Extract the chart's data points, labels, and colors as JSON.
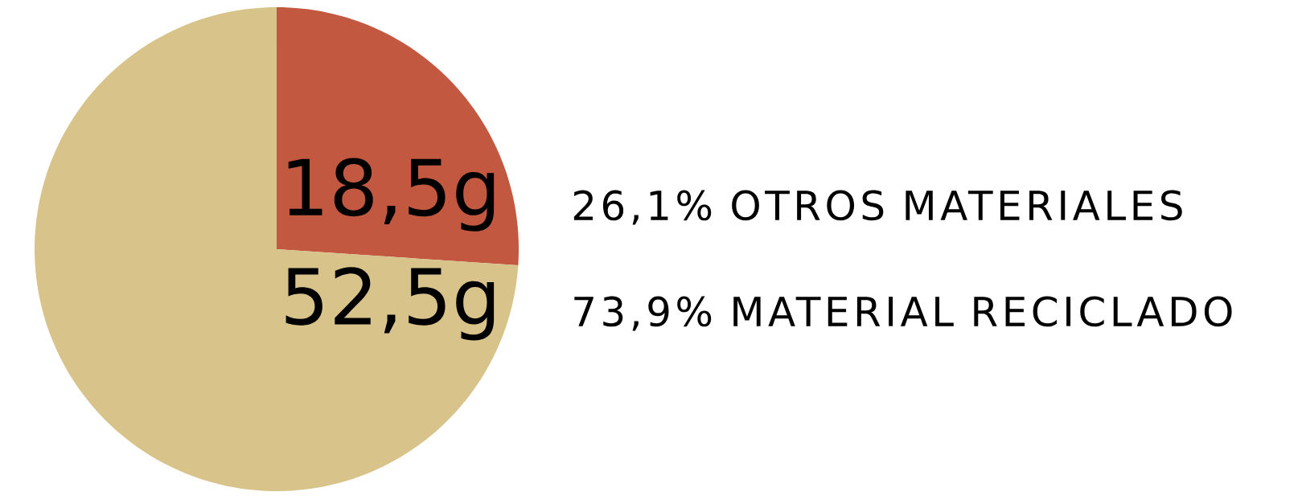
{
  "chart_data": {
    "type": "pie",
    "categories": [
      "26,1% OTROS MATERIALES",
      "73,9% MATERIAL RECICLADO"
    ],
    "values": [
      18.5,
      52.5
    ],
    "value_labels": [
      "18,5g",
      "52,5g"
    ],
    "colors": [
      "#c1583f",
      "#d8c48a"
    ]
  }
}
